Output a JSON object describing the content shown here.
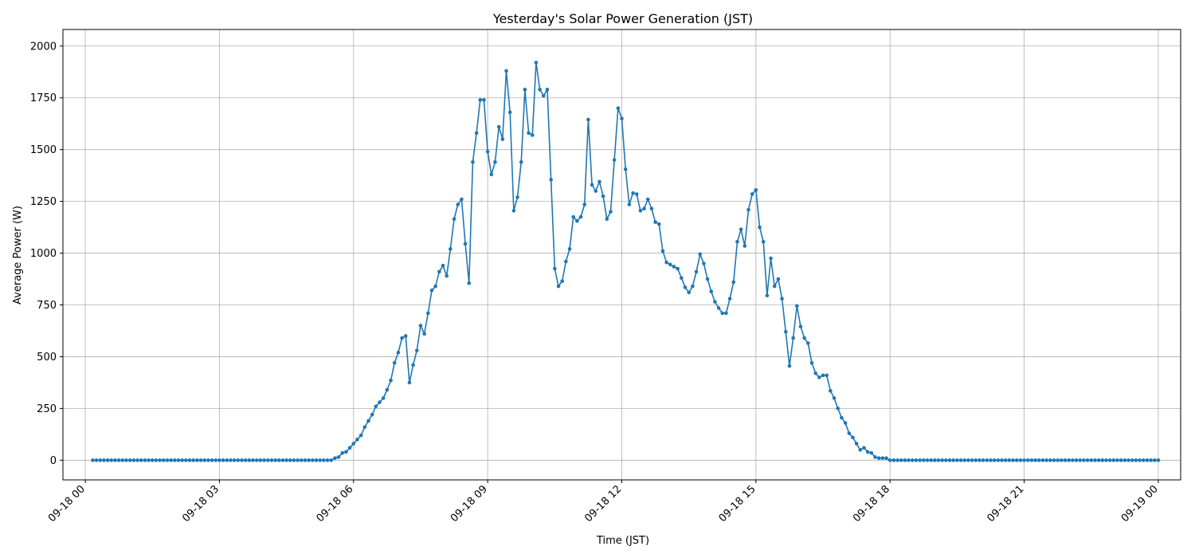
{
  "chart_data": {
    "type": "line",
    "title": "Yesterday's Solar Power Generation (JST)",
    "xlabel": "Time (JST)",
    "ylabel": "Average Power (W)",
    "xlim": [
      "09-17 23:30",
      "09-19 00:30"
    ],
    "ylim": [
      -95,
      2080
    ],
    "x_ticks": [
      {
        "value": "09-18 00:00",
        "label": "09-18 00"
      },
      {
        "value": "09-18 03:00",
        "label": "09-18 03"
      },
      {
        "value": "09-18 06:00",
        "label": "09-18 06"
      },
      {
        "value": "09-18 09:00",
        "label": "09-18 09"
      },
      {
        "value": "09-18 12:00",
        "label": "09-18 12"
      },
      {
        "value": "09-18 15:00",
        "label": "09-18 15"
      },
      {
        "value": "09-18 18:00",
        "label": "09-18 18"
      },
      {
        "value": "09-18 21:00",
        "label": "09-18 21"
      },
      {
        "value": "09-19 00:00",
        "label": "09-19 00"
      }
    ],
    "y_ticks": [
      0,
      250,
      500,
      750,
      1000,
      1250,
      1500,
      1750,
      2000
    ],
    "grid": true,
    "line_color": "#1f77b4",
    "marker": "circle",
    "sampling_interval_minutes": 5,
    "series": [
      {
        "name": "",
        "x_start": "09-18 05:30",
        "x_step_minutes": 5,
        "values": [
          0,
          10,
          15,
          35,
          40,
          60,
          80,
          100,
          120,
          160,
          190,
          220,
          260,
          280,
          300,
          340,
          385,
          470,
          520,
          590,
          600,
          375,
          460,
          530,
          650,
          610,
          710,
          820,
          840,
          910,
          940,
          890,
          1020,
          1165,
          1235,
          1260,
          1045,
          855,
          1440,
          1580,
          1740,
          1740,
          1490,
          1380,
          1440,
          1610,
          1550,
          1880,
          1680,
          1205,
          1270,
          1440,
          1790,
          1580,
          1570,
          1920,
          1790,
          1760,
          1790,
          1355,
          925,
          840,
          865,
          960,
          1020,
          1175,
          1155,
          1175,
          1235,
          1645,
          1330,
          1300,
          1345,
          1275,
          1165,
          1200,
          1450,
          1700,
          1650,
          1405,
          1235,
          1290,
          1285,
          1205,
          1215,
          1260,
          1215,
          1150,
          1140,
          1010,
          955,
          945,
          935,
          925,
          880,
          835,
          810,
          840,
          910,
          995,
          950,
          875,
          815,
          765,
          735,
          710,
          710,
          780,
          860,
          1055,
          1115,
          1035,
          1210,
          1285,
          1305,
          1125,
          1055,
          795,
          975,
          840,
          875,
          780,
          620,
          455,
          590,
          745,
          645,
          590,
          565,
          470,
          420,
          400,
          410,
          410,
          335,
          300,
          250,
          205,
          180,
          130,
          110,
          80,
          50,
          60,
          40,
          35,
          15,
          10,
          10,
          10,
          0
        ]
      },
      {
        "name": "",
        "x_start": "09-18 00:10",
        "x_end": "09-18 05:25",
        "x_step_minutes": 5,
        "constant_value": 0
      },
      {
        "name": "",
        "x_start": "09-18 18:05",
        "x_end": "09-19 00:00",
        "x_step_minutes": 5,
        "constant_value": 0
      }
    ]
  }
}
